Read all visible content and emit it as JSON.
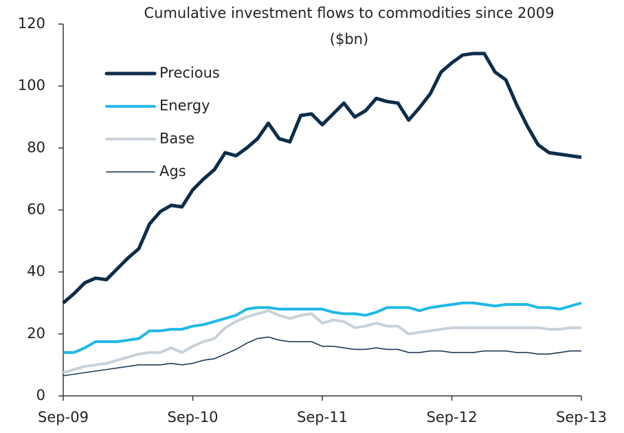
{
  "chart_data": {
    "type": "line",
    "title": [
      "Cumulative  investment flows to  commodities since 2009",
      "($bn)"
    ],
    "categories": [
      "Sep-09",
      null,
      null,
      null,
      null,
      null,
      null,
      null,
      null,
      null,
      null,
      null,
      "Sep-10",
      null,
      null,
      null,
      null,
      null,
      null,
      null,
      null,
      null,
      null,
      null,
      "Sep-11",
      null,
      null,
      null,
      null,
      null,
      null,
      null,
      null,
      null,
      null,
      null,
      "Sep-12",
      null,
      null,
      null,
      null,
      null,
      null,
      null,
      null,
      null,
      null,
      null,
      "Sep-13"
    ],
    "ylim": [
      0,
      120
    ],
    "yticks": [
      0,
      20,
      40,
      60,
      80,
      100,
      120
    ],
    "grid": false,
    "legend": "upper left",
    "series": [
      {
        "name": "Precious",
        "color": "#0d2d4a",
        "width": 5,
        "values": [
          30,
          33,
          36.5,
          38,
          37.5,
          41,
          44.5,
          47.5,
          55.5,
          59.5,
          61.5,
          61,
          66.5,
          70,
          73,
          78.5,
          77.5,
          80,
          83,
          88,
          83,
          82,
          90.5,
          91,
          87.5,
          91,
          94.5,
          90,
          92,
          96,
          95,
          94.5,
          89,
          93,
          97.5,
          104.5,
          107.5,
          110,
          110.5,
          110.5,
          104.5,
          102,
          94,
          87,
          81,
          78.5,
          78,
          77.5,
          77
        ]
      },
      {
        "name": "Energy",
        "color": "#1fb8e8",
        "width": 4,
        "values": [
          14,
          14,
          15.5,
          17.5,
          17.5,
          17.5,
          18,
          18.5,
          21,
          21,
          21.5,
          21.5,
          22.5,
          23,
          24,
          25,
          26,
          28,
          28.5,
          28.5,
          28,
          28,
          28,
          28,
          28,
          27,
          26.5,
          26.5,
          26,
          27,
          28.5,
          28.5,
          28.5,
          27.5,
          28.5,
          29,
          29.5,
          30,
          30,
          29.5,
          29,
          29.5,
          29.5,
          29.5,
          28.5,
          28.5,
          28,
          29,
          30
        ]
      },
      {
        "name": "Base",
        "color": "#c8d1d9",
        "width": 4,
        "values": [
          7.5,
          8.5,
          9.5,
          10,
          10.5,
          11.5,
          12.5,
          13.5,
          14,
          14,
          15.5,
          14,
          16,
          17.5,
          18.5,
          22,
          24,
          25.5,
          26.5,
          27.5,
          26,
          25,
          26,
          26.5,
          23.5,
          24.5,
          24,
          22,
          22.5,
          23.5,
          22.5,
          22.5,
          20,
          20.5,
          21,
          21.5,
          22,
          22,
          22,
          22,
          22,
          22,
          22,
          22,
          22,
          21.5,
          21.5,
          22,
          22
        ]
      },
      {
        "name": "Ags",
        "color": "#0d2d4a",
        "width": 1.5,
        "values": [
          6.5,
          7,
          7.5,
          8,
          8.5,
          9,
          9.5,
          10,
          10,
          10,
          10.5,
          10,
          10.5,
          11.5,
          12,
          13.5,
          15,
          17,
          18.5,
          19,
          18,
          17.5,
          17.5,
          17.5,
          16,
          16,
          15.5,
          15,
          15,
          15.5,
          15,
          15,
          14,
          14,
          14.5,
          14.5,
          14,
          14,
          14,
          14.5,
          14.5,
          14.5,
          14,
          14,
          13.5,
          13.5,
          14,
          14.5,
          14.5
        ]
      }
    ]
  }
}
